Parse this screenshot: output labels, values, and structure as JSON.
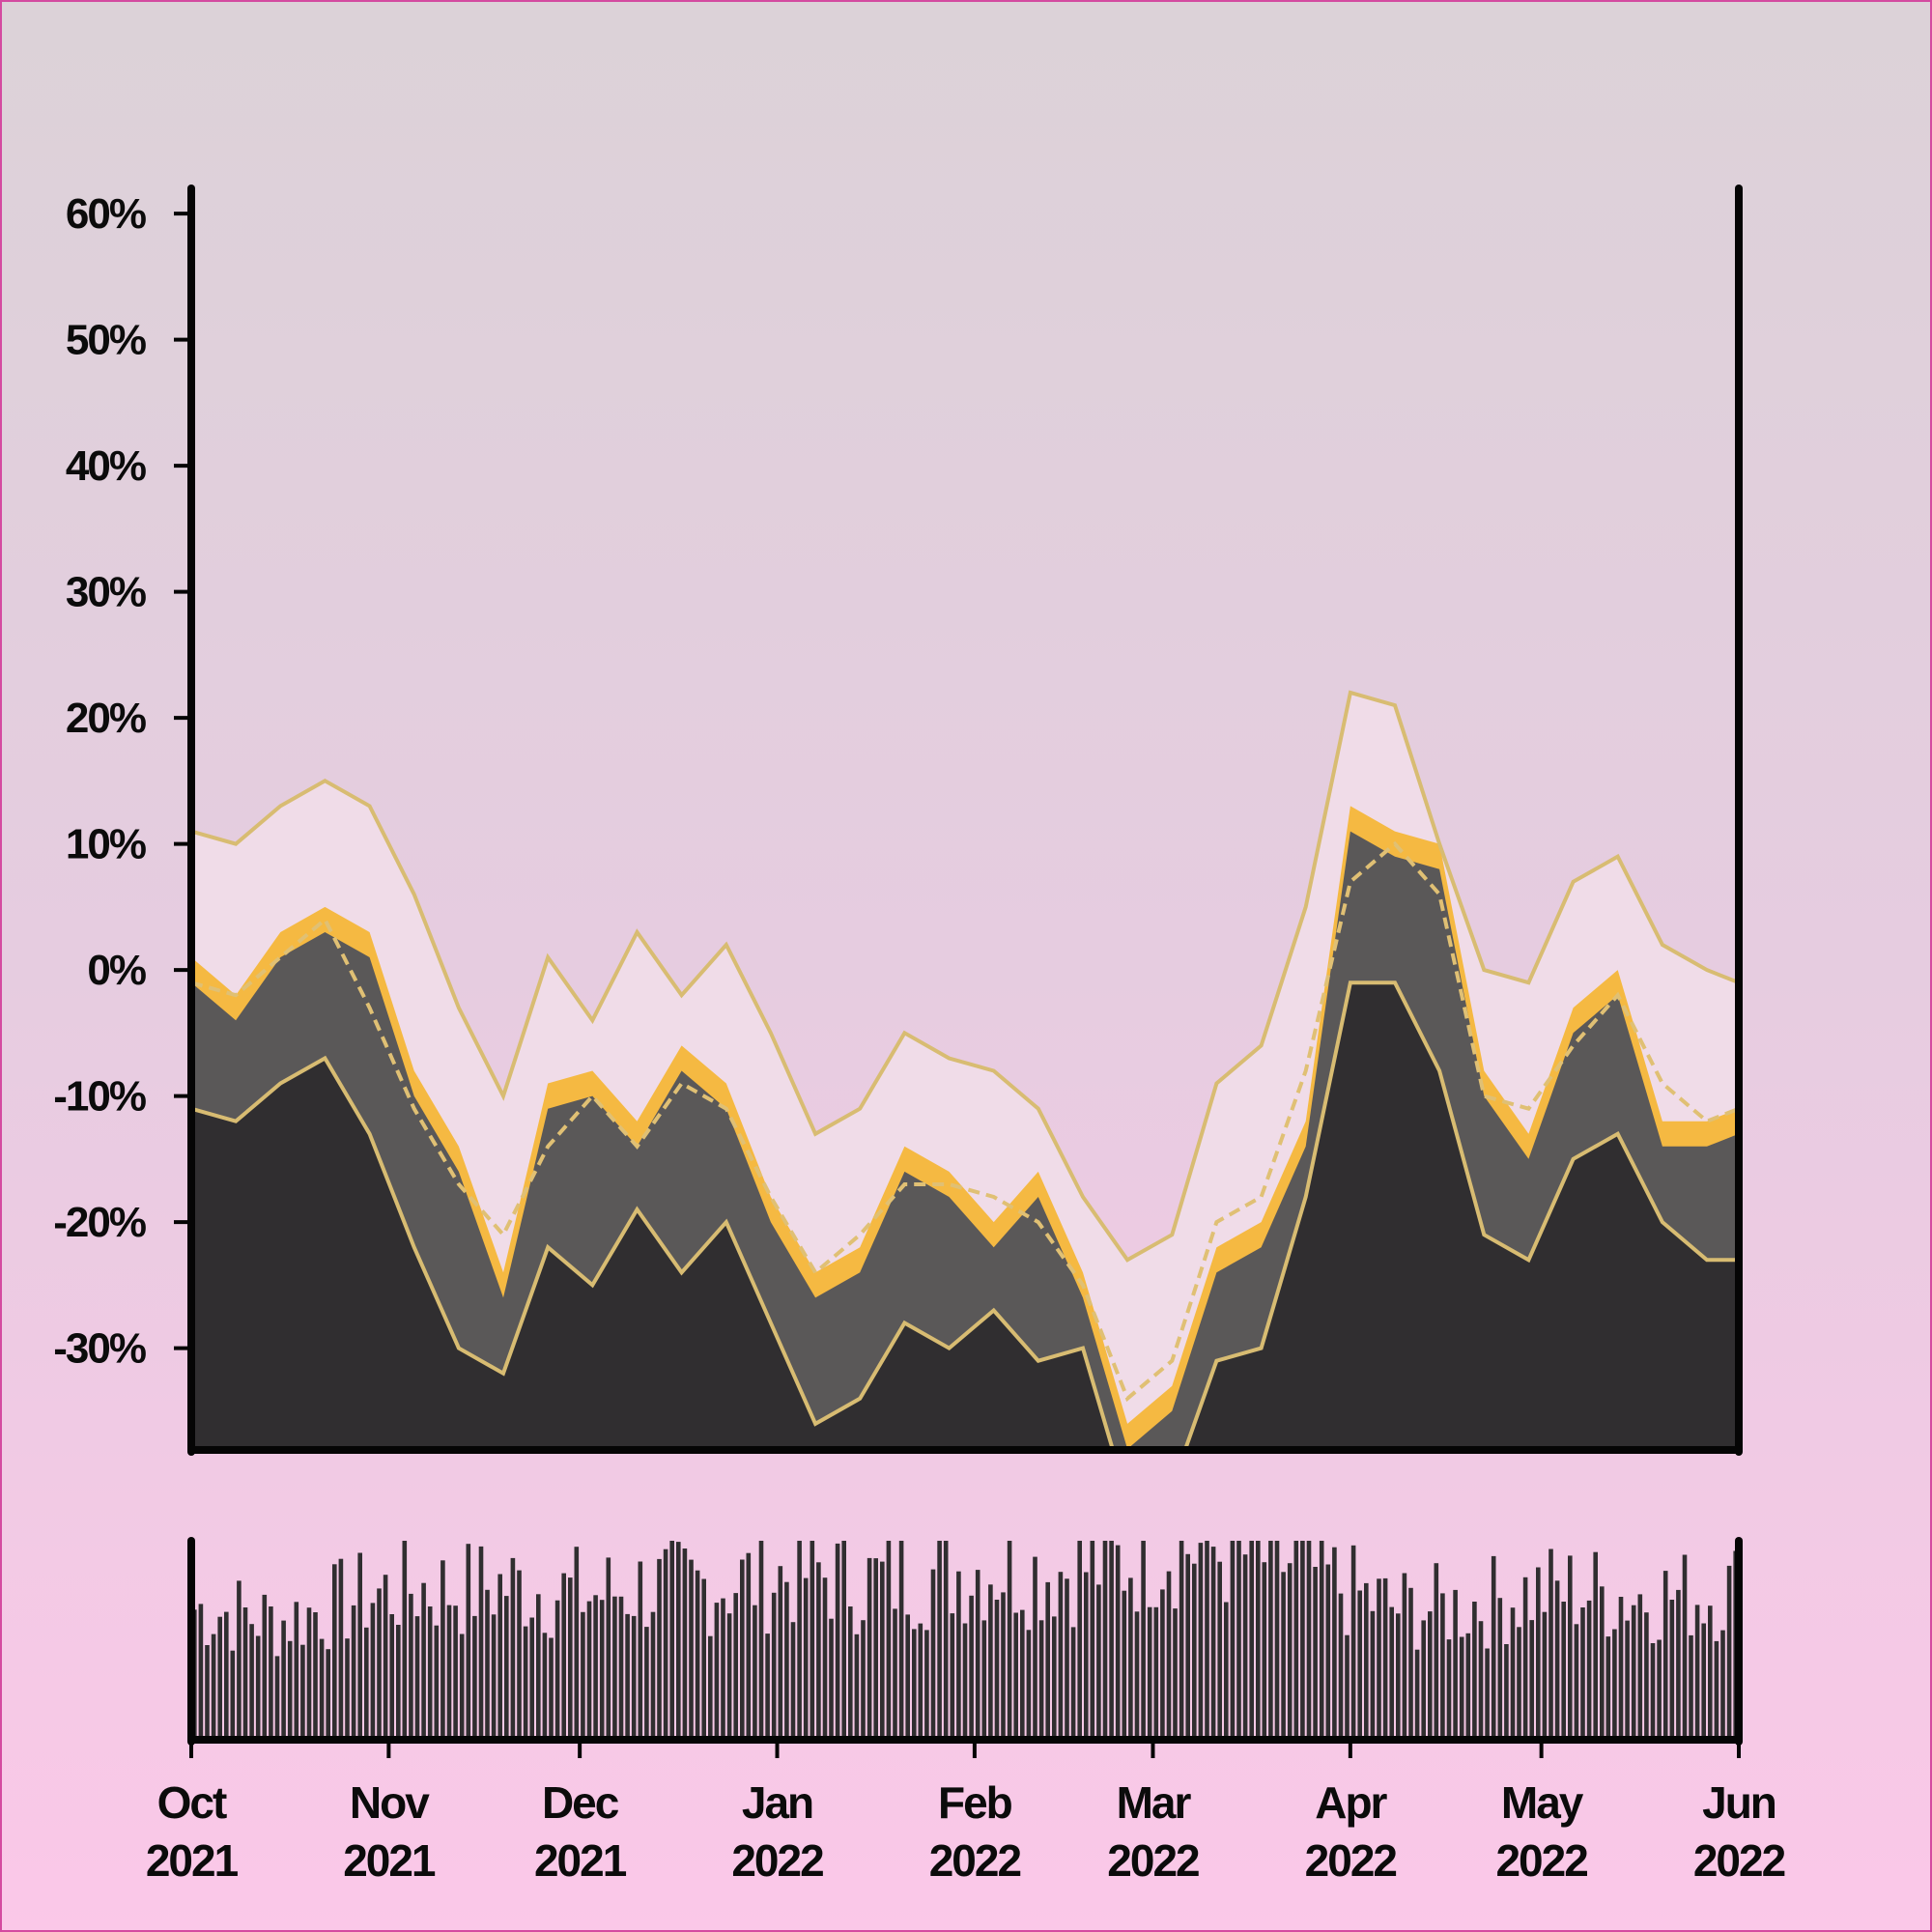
{
  "chart_data": [
    {
      "type": "area",
      "ylim": [
        -38,
        62
      ],
      "yticks": [
        {
          "value": 60,
          "label": "60%"
        },
        {
          "value": 50,
          "label": "50%"
        },
        {
          "value": 40,
          "label": "40%"
        },
        {
          "value": 30,
          "label": "30%"
        },
        {
          "value": 20,
          "label": "20%"
        },
        {
          "value": 10,
          "label": "10%"
        },
        {
          "value": 0,
          "label": "0%"
        },
        {
          "value": -10,
          "label": "-10%"
        },
        {
          "value": -20,
          "label": "-20%"
        },
        {
          "value": -30,
          "label": "-30%"
        }
      ],
      "xlim": [
        "2021-10-01",
        "2022-06-01"
      ],
      "grid": false,
      "series": [
        {
          "role": "value",
          "color": "#f5b942",
          "x": [
            "2021-10-01",
            "2021-10-08",
            "2021-10-15",
            "2021-10-22",
            "2021-10-29",
            "2021-11-05",
            "2021-11-12",
            "2021-11-19",
            "2021-11-26",
            "2021-12-03",
            "2021-12-10",
            "2021-12-17",
            "2021-12-24",
            "2021-12-31",
            "2022-01-07",
            "2022-01-14",
            "2022-01-21",
            "2022-01-28",
            "2022-02-04",
            "2022-02-11",
            "2022-02-18",
            "2022-02-25",
            "2022-03-04",
            "2022-03-11",
            "2022-03-18",
            "2022-03-25",
            "2022-04-01",
            "2022-04-08",
            "2022-04-15",
            "2022-04-22",
            "2022-04-29",
            "2022-05-06",
            "2022-05-13",
            "2022-05-20",
            "2022-05-27",
            "2022-06-01"
          ],
          "values": [
            1,
            -2,
            3,
            5,
            3,
            -8,
            -14,
            -24,
            -9,
            -8,
            -12,
            -6,
            -9,
            -18,
            -24,
            -22,
            -14,
            -16,
            -20,
            -16,
            -24,
            -36,
            -33,
            -22,
            -20,
            -12,
            13,
            11,
            10,
            -8,
            -13,
            -3,
            0,
            -12,
            -12,
            -11
          ]
        },
        {
          "role": "moving-average",
          "style": "dashed",
          "color": "#e0c074",
          "x": [
            "2021-10-01",
            "2021-10-08",
            "2021-10-15",
            "2021-10-22",
            "2021-10-29",
            "2021-11-05",
            "2021-11-12",
            "2021-11-19",
            "2021-11-26",
            "2021-12-03",
            "2021-12-10",
            "2021-12-17",
            "2021-12-24",
            "2021-12-31",
            "2022-01-07",
            "2022-01-14",
            "2022-01-21",
            "2022-01-28",
            "2022-02-04",
            "2022-02-11",
            "2022-02-18",
            "2022-02-25",
            "2022-03-04",
            "2022-03-11",
            "2022-03-18",
            "2022-03-25",
            "2022-04-01",
            "2022-04-08",
            "2022-04-15",
            "2022-04-22",
            "2022-04-29",
            "2022-05-06",
            "2022-05-13",
            "2022-05-20",
            "2022-05-27",
            "2022-06-01"
          ],
          "values": [
            -1,
            -2,
            1,
            4,
            -3,
            -11,
            -17,
            -21,
            -14,
            -10,
            -14,
            -9,
            -11,
            -18,
            -24,
            -21,
            -17,
            -17,
            -18,
            -20,
            -25,
            -34,
            -31,
            -20,
            -18,
            -8,
            7,
            10,
            6,
            -10,
            -11,
            -6,
            -2,
            -9,
            -12,
            -11
          ]
        },
        {
          "role": "upper-band",
          "color": "#d8bc72",
          "x": [
            "2021-10-01",
            "2021-10-08",
            "2021-10-15",
            "2021-10-22",
            "2021-10-29",
            "2021-11-05",
            "2021-11-12",
            "2021-11-19",
            "2021-11-26",
            "2021-12-03",
            "2021-12-10",
            "2021-12-17",
            "2021-12-24",
            "2021-12-31",
            "2022-01-07",
            "2022-01-14",
            "2022-01-21",
            "2022-01-28",
            "2022-02-04",
            "2022-02-11",
            "2022-02-18",
            "2022-02-25",
            "2022-03-04",
            "2022-03-11",
            "2022-03-18",
            "2022-03-25",
            "2022-04-01",
            "2022-04-08",
            "2022-04-15",
            "2022-04-22",
            "2022-04-29",
            "2022-05-06",
            "2022-05-13",
            "2022-05-20",
            "2022-05-27",
            "2022-06-01"
          ],
          "values": [
            11,
            10,
            13,
            15,
            13,
            6,
            -3,
            -10,
            1,
            -4,
            3,
            -2,
            2,
            -5,
            -13,
            -11,
            -5,
            -7,
            -8,
            -11,
            -18,
            -23,
            -21,
            -9,
            -6,
            5,
            22,
            21,
            10,
            0,
            -1,
            7,
            9,
            2,
            0,
            -1
          ]
        },
        {
          "role": "lower-band",
          "color": "#d8bc72",
          "x": [
            "2021-10-01",
            "2021-10-08",
            "2021-10-15",
            "2021-10-22",
            "2021-10-29",
            "2021-11-05",
            "2021-11-12",
            "2021-11-19",
            "2021-11-26",
            "2021-12-03",
            "2021-12-10",
            "2021-12-17",
            "2021-12-24",
            "2021-12-31",
            "2022-01-07",
            "2022-01-14",
            "2022-01-21",
            "2022-01-28",
            "2022-02-04",
            "2022-02-11",
            "2022-02-18",
            "2022-02-25",
            "2022-03-04",
            "2022-03-11",
            "2022-03-18",
            "2022-03-25",
            "2022-04-01",
            "2022-04-08",
            "2022-04-15",
            "2022-04-22",
            "2022-04-29",
            "2022-05-06",
            "2022-05-13",
            "2022-05-20",
            "2022-05-27",
            "2022-06-01"
          ],
          "values": [
            -11,
            -12,
            -9,
            -7,
            -13,
            -22,
            -30,
            -32,
            -22,
            -25,
            -19,
            -24,
            -20,
            -28,
            -36,
            -34,
            -28,
            -30,
            -27,
            -31,
            -30,
            -42,
            -41,
            -31,
            -30,
            -18,
            -1,
            -1,
            -8,
            -21,
            -23,
            -15,
            -13,
            -20,
            -23,
            -23
          ]
        }
      ]
    },
    {
      "type": "bar",
      "color": "#302e30",
      "xlim": [
        "2021-10-01",
        "2022-06-01"
      ],
      "xticks": [
        {
          "date": "2021-10-01",
          "label_month": "Oct",
          "label_year": "2021"
        },
        {
          "date": "2021-11-01",
          "label_month": "Nov",
          "label_year": "2021"
        },
        {
          "date": "2021-12-01",
          "label_month": "Dec",
          "label_year": "2021"
        },
        {
          "date": "2022-01-01",
          "label_month": "Jan",
          "label_year": "2022"
        },
        {
          "date": "2022-02-01",
          "label_month": "Feb",
          "label_year": "2022"
        },
        {
          "date": "2022-03-01",
          "label_month": "Mar",
          "label_year": "2022"
        },
        {
          "date": "2022-04-01",
          "label_month": "Apr",
          "label_year": "2022"
        },
        {
          "date": "2022-05-01",
          "label_month": "May",
          "label_year": "2022"
        },
        {
          "date": "2022-06-01",
          "label_month": "Jun",
          "label_year": "2022"
        }
      ],
      "x": [
        "2021-10-01",
        "2021-10-08",
        "2021-10-15",
        "2021-10-22",
        "2021-10-29",
        "2021-11-05",
        "2021-11-12",
        "2021-11-19",
        "2021-11-26",
        "2021-12-03",
        "2021-12-10",
        "2021-12-17",
        "2021-12-24",
        "2021-12-31",
        "2022-01-07",
        "2022-01-14",
        "2022-01-21",
        "2022-01-28",
        "2022-02-04",
        "2022-02-11",
        "2022-02-18",
        "2022-02-25",
        "2022-03-04",
        "2022-03-11",
        "2022-03-18",
        "2022-03-25",
        "2022-04-01",
        "2022-04-08",
        "2022-04-15",
        "2022-04-22",
        "2022-04-29",
        "2022-05-06",
        "2022-05-13",
        "2022-05-20",
        "2022-05-27",
        "2022-06-01"
      ],
      "values": [
        50,
        48,
        45,
        50,
        55,
        58,
        57,
        59,
        57,
        55,
        58,
        58,
        60,
        62,
        64,
        60,
        62,
        64,
        66,
        64,
        66,
        68,
        75,
        72,
        70,
        66,
        56,
        50,
        50,
        52,
        56,
        57,
        55,
        55,
        55,
        58
      ]
    }
  ]
}
